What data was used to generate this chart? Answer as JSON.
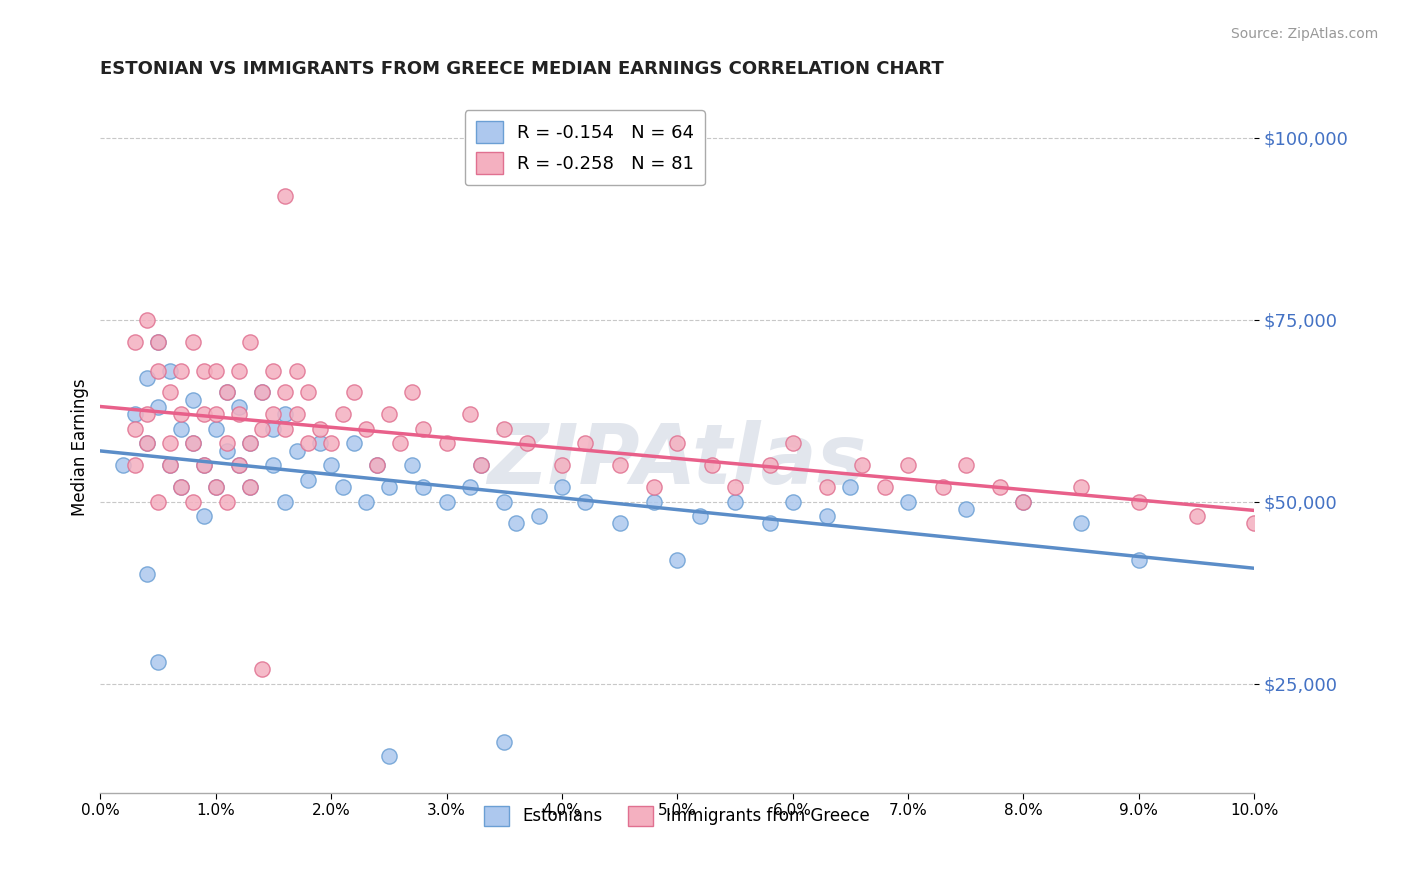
{
  "title": "ESTONIAN VS IMMIGRANTS FROM GREECE MEDIAN EARNINGS CORRELATION CHART",
  "source": "Source: ZipAtlas.com",
  "ylabel": "Median Earnings",
  "xlim": [
    0.0,
    0.1
  ],
  "ylim": [
    10000,
    105000
  ],
  "yticks": [
    25000,
    50000,
    75000,
    100000
  ],
  "ytick_labels": [
    "$25,000",
    "$50,000",
    "$75,000",
    "$100,000"
  ],
  "xticks": [
    0.0,
    0.01,
    0.02,
    0.03,
    0.04,
    0.05,
    0.06,
    0.07,
    0.08,
    0.09,
    0.1
  ],
  "xtick_labels": [
    "0.0%",
    "1.0%",
    "2.0%",
    "3.0%",
    "4.0%",
    "5.0%",
    "6.0%",
    "7.0%",
    "8.0%",
    "9.0%",
    "10.0%"
  ],
  "series": [
    {
      "name": "Estonians",
      "R": -0.154,
      "N": 64,
      "color": "#adc8ee",
      "edge_color": "#6b9fd4",
      "trend_color": "#5b8dc8",
      "x": [
        0.002,
        0.003,
        0.004,
        0.004,
        0.005,
        0.005,
        0.006,
        0.006,
        0.007,
        0.007,
        0.008,
        0.008,
        0.009,
        0.009,
        0.01,
        0.01,
        0.011,
        0.011,
        0.012,
        0.012,
        0.013,
        0.013,
        0.014,
        0.015,
        0.015,
        0.016,
        0.016,
        0.017,
        0.018,
        0.019,
        0.02,
        0.021,
        0.022,
        0.023,
        0.024,
        0.025,
        0.027,
        0.028,
        0.03,
        0.032,
        0.033,
        0.035,
        0.036,
        0.038,
        0.04,
        0.042,
        0.045,
        0.048,
        0.05,
        0.052,
        0.055,
        0.058,
        0.06,
        0.063,
        0.065,
        0.07,
        0.075,
        0.08,
        0.085,
        0.09,
        0.004,
        0.005,
        0.025,
        0.035
      ],
      "y": [
        55000,
        62000,
        67000,
        58000,
        72000,
        63000,
        68000,
        55000,
        60000,
        52000,
        58000,
        64000,
        55000,
        48000,
        60000,
        52000,
        57000,
        65000,
        55000,
        63000,
        58000,
        52000,
        65000,
        60000,
        55000,
        62000,
        50000,
        57000,
        53000,
        58000,
        55000,
        52000,
        58000,
        50000,
        55000,
        52000,
        55000,
        52000,
        50000,
        52000,
        55000,
        50000,
        47000,
        48000,
        52000,
        50000,
        47000,
        50000,
        42000,
        48000,
        50000,
        47000,
        50000,
        48000,
        52000,
        50000,
        49000,
        50000,
        47000,
        42000,
        40000,
        28000,
        15000,
        17000
      ]
    },
    {
      "name": "Immigrants from Greece",
      "R": -0.258,
      "N": 81,
      "color": "#f4b0c0",
      "edge_color": "#e07090",
      "trend_color": "#e8608a",
      "x": [
        0.003,
        0.003,
        0.004,
        0.004,
        0.005,
        0.005,
        0.006,
        0.006,
        0.007,
        0.007,
        0.008,
        0.008,
        0.009,
        0.009,
        0.01,
        0.01,
        0.011,
        0.011,
        0.012,
        0.012,
        0.013,
        0.013,
        0.014,
        0.014,
        0.015,
        0.015,
        0.016,
        0.016,
        0.017,
        0.017,
        0.018,
        0.018,
        0.019,
        0.02,
        0.021,
        0.022,
        0.023,
        0.024,
        0.025,
        0.026,
        0.027,
        0.028,
        0.03,
        0.032,
        0.033,
        0.035,
        0.037,
        0.04,
        0.042,
        0.045,
        0.048,
        0.05,
        0.053,
        0.055,
        0.058,
        0.06,
        0.063,
        0.066,
        0.068,
        0.07,
        0.073,
        0.075,
        0.078,
        0.08,
        0.085,
        0.09,
        0.095,
        0.1,
        0.003,
        0.004,
        0.005,
        0.006,
        0.007,
        0.008,
        0.009,
        0.01,
        0.011,
        0.012,
        0.013,
        0.014,
        0.016
      ],
      "y": [
        72000,
        60000,
        75000,
        62000,
        68000,
        72000,
        65000,
        58000,
        68000,
        62000,
        72000,
        58000,
        68000,
        62000,
        68000,
        62000,
        65000,
        58000,
        68000,
        62000,
        72000,
        58000,
        65000,
        60000,
        62000,
        68000,
        60000,
        65000,
        62000,
        68000,
        58000,
        65000,
        60000,
        58000,
        62000,
        65000,
        60000,
        55000,
        62000,
        58000,
        65000,
        60000,
        58000,
        62000,
        55000,
        60000,
        58000,
        55000,
        58000,
        55000,
        52000,
        58000,
        55000,
        52000,
        55000,
        58000,
        52000,
        55000,
        52000,
        55000,
        52000,
        55000,
        52000,
        50000,
        52000,
        50000,
        48000,
        47000,
        55000,
        58000,
        50000,
        55000,
        52000,
        50000,
        55000,
        52000,
        50000,
        55000,
        52000,
        27000,
        92000
      ]
    }
  ],
  "watermark": "ZIPAtlas",
  "title_color": "#222222",
  "ytick_color": "#4472c4",
  "background_color": "#ffffff",
  "grid_color": "#c8c8c8"
}
